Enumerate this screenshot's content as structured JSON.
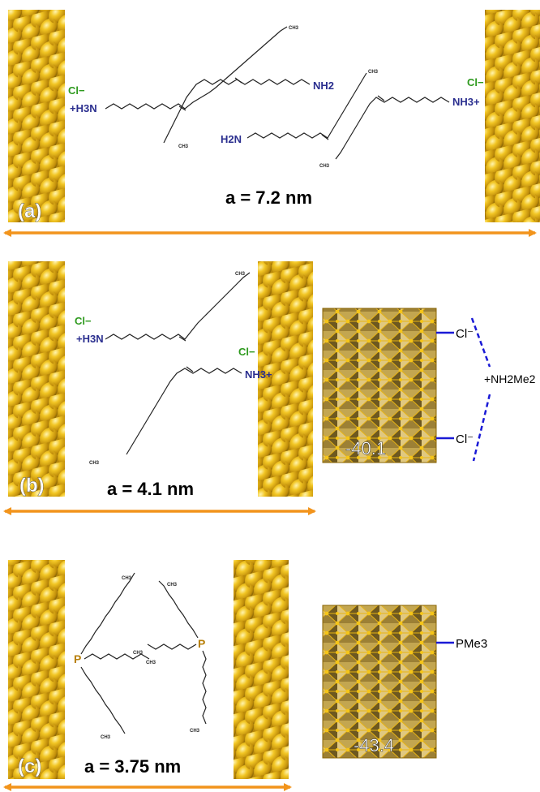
{
  "panels": [
    {
      "tag": "(a)",
      "spacing": "a = 7.2 nm",
      "counterion_left": "Cl−",
      "head_left": "+H3N",
      "counterion_right": "Cl−",
      "head_right": "NH3+",
      "amine_1": "NH2",
      "amine_2": "H2N",
      "methyl": "CH3"
    },
    {
      "tag": "(b)",
      "spacing": "a = 4.1 nm",
      "counterion_left": "Cl−",
      "head_left": "+H3N",
      "counterion_right": "Cl−",
      "head_right": "NH3+",
      "methyl": "CH3",
      "cluster_value": "-40.1",
      "cluster_ligand_top": "Cl⁻",
      "cluster_ligand_bottom": "Cl⁻",
      "bridging_cation": "+NH2Me2"
    },
    {
      "tag": "(c)",
      "spacing": "a = 3.75 nm",
      "phosphorus_1": "P",
      "phosphorus_2": "P",
      "methyl": "CH3",
      "cluster_value": "-43.4",
      "cluster_ligand": "PMe3"
    }
  ],
  "colors": {
    "gold": "#e8b91a",
    "gold_dark": "#8a6405",
    "arrow": "#f2941c",
    "chloride": "#2e9a1e",
    "amine": "#2b2f8f",
    "phosphorus": "#b8800a",
    "bond_blue": "#1a1ad6"
  }
}
